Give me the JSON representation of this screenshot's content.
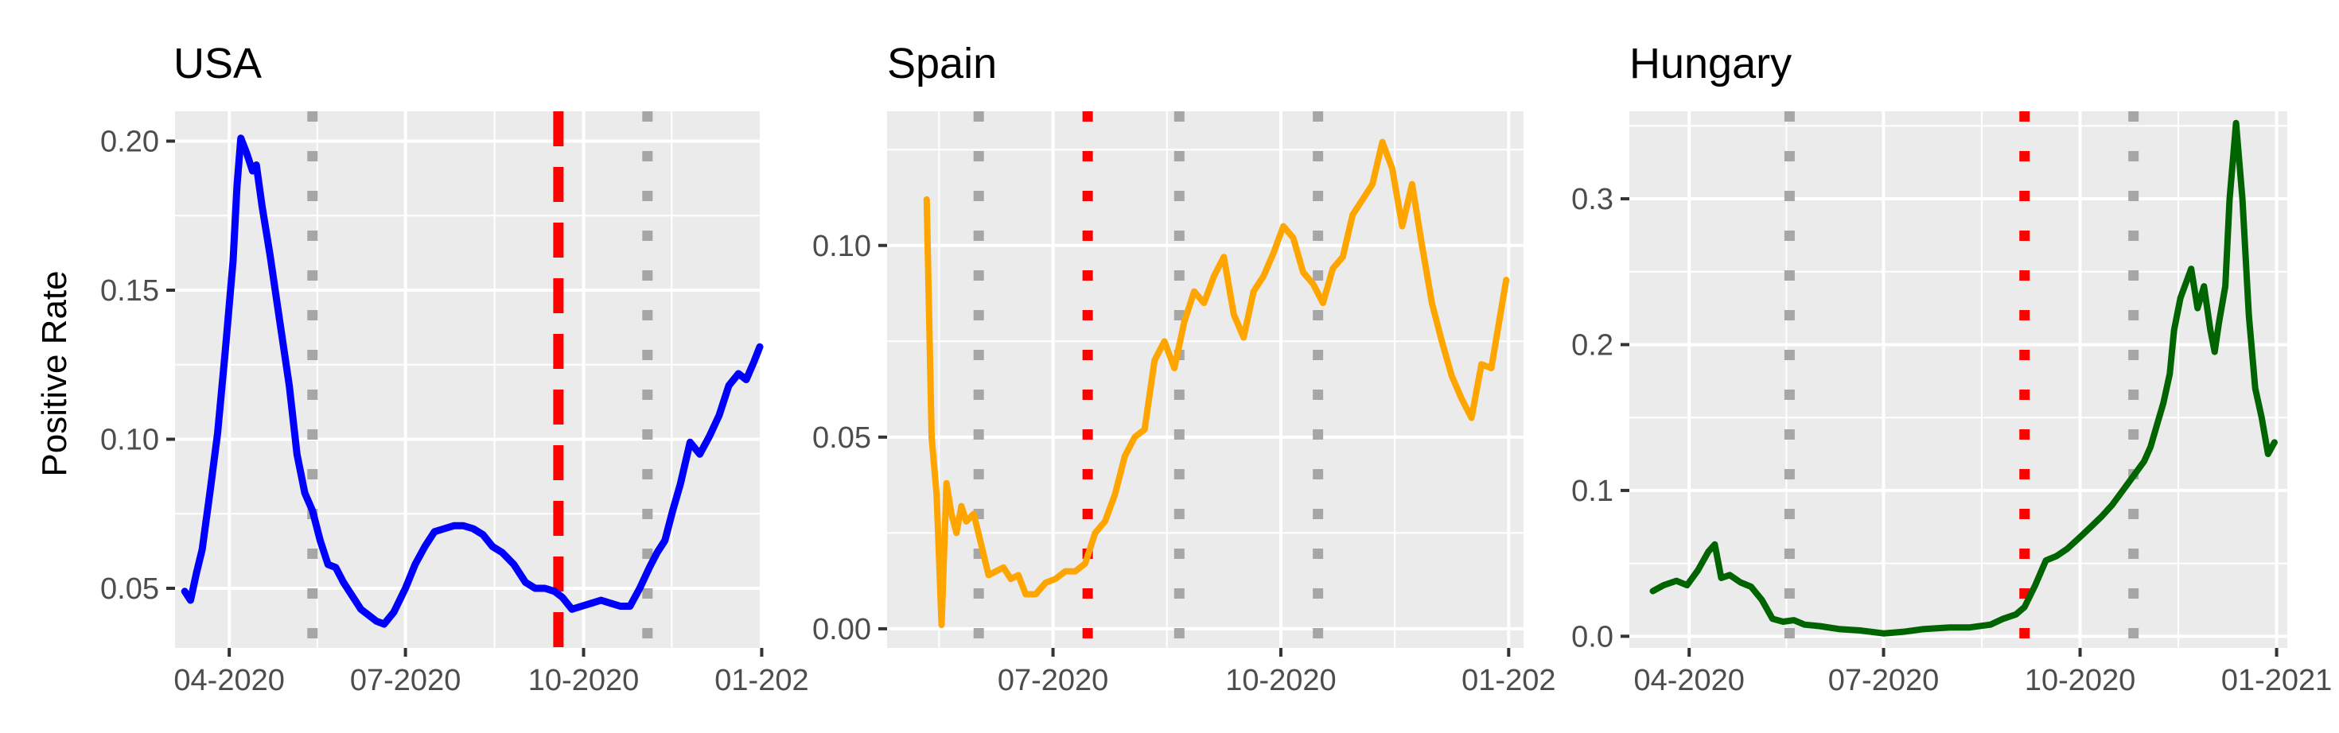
{
  "figure": {
    "ylabel": "Positive Rate"
  },
  "chart_data": [
    {
      "type": "line",
      "title": "USA",
      "xlabel": "",
      "ylabel": "Positive Rate",
      "color": "#0000ff",
      "grid": true,
      "xlim": [
        "2020-03-04",
        "2020-12-31"
      ],
      "ylim": [
        0.03,
        0.21
      ],
      "x_ticks": [
        {
          "x": "2020-04-01",
          "label": "04-2020"
        },
        {
          "x": "2020-07-01",
          "label": "07-2020"
        },
        {
          "x": "2020-10-01",
          "label": "10-2020"
        },
        {
          "x": "2021-01-01",
          "label": "01-202"
        }
      ],
      "y_ticks": [
        {
          "y": 0.05,
          "label": "0.05"
        },
        {
          "y": 0.1,
          "label": "0.10"
        },
        {
          "y": 0.15,
          "label": "0.15"
        },
        {
          "y": 0.2,
          "label": "0.20"
        }
      ],
      "vlines": [
        {
          "x": "2020-05-14",
          "style": "dotted",
          "color": "#a6a6a6"
        },
        {
          "x": "2020-11-03",
          "style": "dotted",
          "color": "#a6a6a6"
        },
        {
          "x": "2020-09-18",
          "style": "dashed",
          "color": "#ff0000"
        }
      ],
      "series": [
        {
          "x": [
            "2020-03-09",
            "2020-03-12",
            "2020-03-15",
            "2020-03-18",
            "2020-03-22",
            "2020-03-26",
            "2020-03-30",
            "2020-04-03",
            "2020-04-05",
            "2020-04-07",
            "2020-04-10",
            "2020-04-13",
            "2020-04-15",
            "2020-04-18",
            "2020-04-22",
            "2020-04-27",
            "2020-05-02",
            "2020-05-06",
            "2020-05-10",
            "2020-05-14",
            "2020-05-18",
            "2020-05-22",
            "2020-05-26",
            "2020-05-30",
            "2020-06-04",
            "2020-06-08",
            "2020-06-12",
            "2020-06-16",
            "2020-06-20",
            "2020-06-25",
            "2020-07-01",
            "2020-07-06",
            "2020-07-11",
            "2020-07-16",
            "2020-07-21",
            "2020-07-26",
            "2020-07-31",
            "2020-08-05",
            "2020-08-10",
            "2020-08-15",
            "2020-08-20",
            "2020-08-26",
            "2020-09-01",
            "2020-09-06",
            "2020-09-11",
            "2020-09-16",
            "2020-09-20",
            "2020-09-25",
            "2020-09-30",
            "2020-10-05",
            "2020-10-10",
            "2020-10-15",
            "2020-10-20",
            "2020-10-25",
            "2020-10-30",
            "2020-11-04",
            "2020-11-08",
            "2020-11-12",
            "2020-11-16",
            "2020-11-20",
            "2020-11-25",
            "2020-11-30",
            "2020-12-05",
            "2020-12-10",
            "2020-12-15",
            "2020-12-20",
            "2020-12-24",
            "2020-12-28",
            "2020-12-31"
          ],
          "y": [
            0.049,
            0.046,
            0.055,
            0.063,
            0.082,
            0.102,
            0.13,
            0.16,
            0.185,
            0.201,
            0.196,
            0.19,
            0.192,
            0.178,
            0.162,
            0.14,
            0.118,
            0.095,
            0.082,
            0.076,
            0.066,
            0.058,
            0.057,
            0.052,
            0.047,
            0.043,
            0.041,
            0.039,
            0.038,
            0.042,
            0.05,
            0.058,
            0.064,
            0.069,
            0.07,
            0.071,
            0.071,
            0.07,
            0.068,
            0.064,
            0.062,
            0.058,
            0.052,
            0.05,
            0.05,
            0.049,
            0.047,
            0.043,
            0.044,
            0.045,
            0.046,
            0.045,
            0.044,
            0.044,
            0.05,
            0.057,
            0.062,
            0.066,
            0.076,
            0.085,
            0.099,
            0.095,
            0.101,
            0.108,
            0.118,
            0.122,
            0.12,
            0.126,
            0.131
          ]
        }
      ]
    },
    {
      "type": "line",
      "title": "Spain",
      "xlabel": "",
      "ylabel": "",
      "color": "#ffa500",
      "grid": true,
      "xlim": [
        "2020-04-25",
        "2021-01-07"
      ],
      "ylim": [
        -0.005,
        0.135
      ],
      "x_ticks": [
        {
          "x": "2020-07-01",
          "label": "07-2020"
        },
        {
          "x": "2020-10-01",
          "label": "10-2020"
        },
        {
          "x": "2021-01-01",
          "label": "01-202"
        }
      ],
      "y_ticks": [
        {
          "y": 0.0,
          "label": "0.00"
        },
        {
          "y": 0.05,
          "label": "0.05"
        },
        {
          "y": 0.1,
          "label": "0.10"
        }
      ],
      "vlines": [
        {
          "x": "2020-06-01",
          "style": "dotted",
          "color": "#a6a6a6"
        },
        {
          "x": "2020-08-21",
          "style": "dotted",
          "color": "#a6a6a6"
        },
        {
          "x": "2020-10-16",
          "style": "dotted",
          "color": "#a6a6a6"
        },
        {
          "x": "2020-07-15",
          "style": "dotted",
          "color": "#ff0000"
        }
      ],
      "series": [
        {
          "x": [
            "2020-05-11",
            "2020-05-13",
            "2020-05-15",
            "2020-05-17",
            "2020-05-19",
            "2020-05-21",
            "2020-05-23",
            "2020-05-25",
            "2020-05-27",
            "2020-05-30",
            "2020-06-02",
            "2020-06-05",
            "2020-06-08",
            "2020-06-11",
            "2020-06-14",
            "2020-06-17",
            "2020-06-20",
            "2020-06-24",
            "2020-06-28",
            "2020-07-02",
            "2020-07-06",
            "2020-07-10",
            "2020-07-14",
            "2020-07-18",
            "2020-07-22",
            "2020-07-26",
            "2020-07-30",
            "2020-08-03",
            "2020-08-07",
            "2020-08-11",
            "2020-08-15",
            "2020-08-19",
            "2020-08-23",
            "2020-08-27",
            "2020-08-31",
            "2020-09-04",
            "2020-09-08",
            "2020-09-12",
            "2020-09-16",
            "2020-09-20",
            "2020-09-24",
            "2020-09-28",
            "2020-10-02",
            "2020-10-06",
            "2020-10-10",
            "2020-10-14",
            "2020-10-18",
            "2020-10-22",
            "2020-10-26",
            "2020-10-30",
            "2020-11-03",
            "2020-11-07",
            "2020-11-11",
            "2020-11-15",
            "2020-11-19",
            "2020-11-23",
            "2020-11-27",
            "2020-12-01",
            "2020-12-05",
            "2020-12-09",
            "2020-12-13",
            "2020-12-17",
            "2020-12-21",
            "2020-12-25",
            "2020-12-31"
          ],
          "y": [
            0.112,
            0.05,
            0.035,
            0.001,
            0.038,
            0.03,
            0.025,
            0.032,
            0.028,
            0.03,
            0.022,
            0.014,
            0.015,
            0.016,
            0.013,
            0.014,
            0.009,
            0.009,
            0.012,
            0.013,
            0.015,
            0.015,
            0.017,
            0.025,
            0.028,
            0.035,
            0.045,
            0.05,
            0.052,
            0.07,
            0.075,
            0.068,
            0.08,
            0.088,
            0.085,
            0.092,
            0.097,
            0.082,
            0.076,
            0.088,
            0.092,
            0.098,
            0.105,
            0.102,
            0.093,
            0.09,
            0.085,
            0.094,
            0.097,
            0.108,
            0.112,
            0.116,
            0.127,
            0.12,
            0.105,
            0.116,
            0.1,
            0.085,
            0.075,
            0.066,
            0.06,
            0.055,
            0.069,
            0.068,
            0.091
          ]
        }
      ]
    },
    {
      "type": "line",
      "title": "Hungary",
      "xlabel": "",
      "ylabel": "",
      "color": "#006400",
      "grid": true,
      "xlim": [
        "2020-03-04",
        "2021-01-06"
      ],
      "ylim": [
        -0.008,
        0.36
      ],
      "x_ticks": [
        {
          "x": "2020-04-01",
          "label": "04-2020"
        },
        {
          "x": "2020-07-01",
          "label": "07-2020"
        },
        {
          "x": "2020-10-01",
          "label": "10-2020"
        },
        {
          "x": "2021-01-01",
          "label": "01-2021"
        }
      ],
      "y_ticks": [
        {
          "y": 0.0,
          "label": "0.0"
        },
        {
          "y": 0.1,
          "label": "0.1"
        },
        {
          "y": 0.2,
          "label": "0.2"
        },
        {
          "y": 0.3,
          "label": "0.3"
        }
      ],
      "vlines": [
        {
          "x": "2020-05-18",
          "style": "dotted",
          "color": "#a6a6a6"
        },
        {
          "x": "2020-10-26",
          "style": "dotted",
          "color": "#a6a6a6"
        },
        {
          "x": "2020-09-05",
          "style": "dotted",
          "color": "#ff0000"
        }
      ],
      "series": [
        {
          "x": [
            "2020-03-15",
            "2020-03-20",
            "2020-03-26",
            "2020-03-31",
            "2020-04-05",
            "2020-04-10",
            "2020-04-13",
            "2020-04-16",
            "2020-04-20",
            "2020-04-25",
            "2020-04-30",
            "2020-05-05",
            "2020-05-10",
            "2020-05-15",
            "2020-05-20",
            "2020-05-25",
            "2020-06-01",
            "2020-06-10",
            "2020-06-20",
            "2020-07-01",
            "2020-07-10",
            "2020-07-20",
            "2020-08-01",
            "2020-08-10",
            "2020-08-20",
            "2020-08-26",
            "2020-09-01",
            "2020-09-05",
            "2020-09-10",
            "2020-09-15",
            "2020-09-20",
            "2020-09-25",
            "2020-10-01",
            "2020-10-06",
            "2020-10-11",
            "2020-10-16",
            "2020-10-21",
            "2020-10-26",
            "2020-10-31",
            "2020-11-03",
            "2020-11-06",
            "2020-11-09",
            "2020-11-12",
            "2020-11-14",
            "2020-11-17",
            "2020-11-19",
            "2020-11-22",
            "2020-11-25",
            "2020-11-28",
            "2020-12-01",
            "2020-12-03",
            "2020-12-05",
            "2020-12-08",
            "2020-12-10",
            "2020-12-13",
            "2020-12-16",
            "2020-12-19",
            "2020-12-22",
            "2020-12-25",
            "2020-12-28",
            "2020-12-31"
          ],
          "y": [
            0.031,
            0.035,
            0.038,
            0.035,
            0.045,
            0.058,
            0.063,
            0.04,
            0.042,
            0.037,
            0.034,
            0.025,
            0.012,
            0.01,
            0.011,
            0.008,
            0.007,
            0.005,
            0.004,
            0.002,
            0.003,
            0.005,
            0.006,
            0.006,
            0.008,
            0.012,
            0.015,
            0.02,
            0.035,
            0.052,
            0.055,
            0.06,
            0.068,
            0.075,
            0.082,
            0.09,
            0.1,
            0.11,
            0.12,
            0.13,
            0.145,
            0.16,
            0.18,
            0.21,
            0.232,
            0.24,
            0.252,
            0.225,
            0.24,
            0.21,
            0.195,
            0.215,
            0.24,
            0.3,
            0.352,
            0.3,
            0.22,
            0.17,
            0.15,
            0.125,
            0.133
          ]
        }
      ]
    }
  ]
}
